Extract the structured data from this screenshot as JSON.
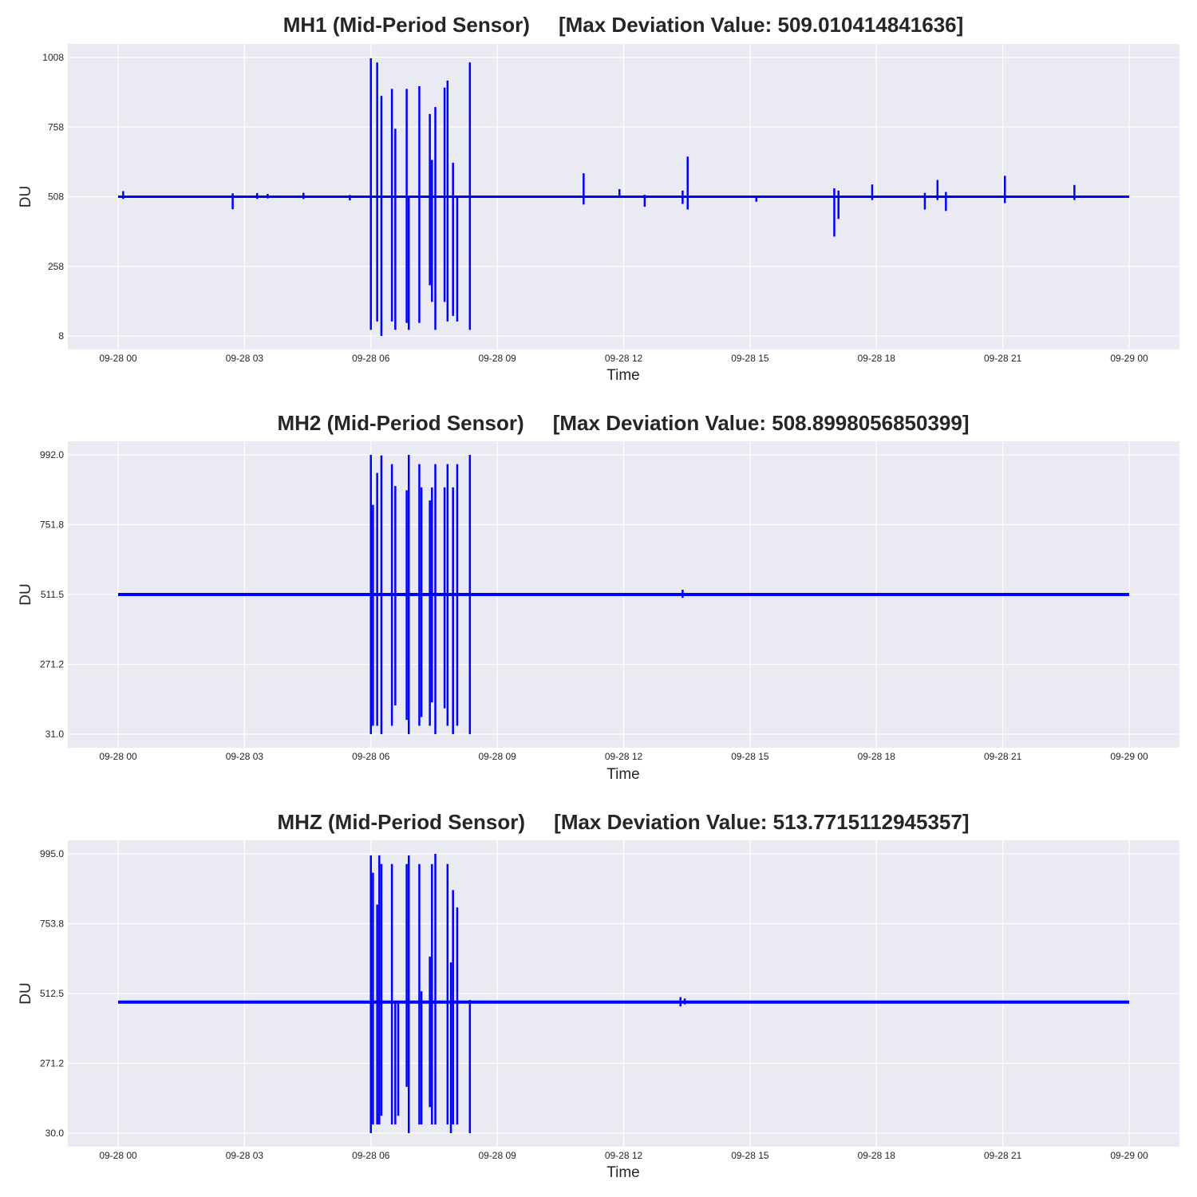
{
  "chart_data": [
    {
      "type": "line",
      "title": "MH1 (Mid-Period Sensor)     [Max Deviation Value: 509.010414841636]",
      "xlabel": "Time",
      "ylabel": "DU",
      "x_ticks": [
        "09-28 00",
        "09-28 03",
        "09-28 06",
        "09-28 09",
        "09-28 12",
        "09-28 15",
        "09-28 18",
        "09-28 21",
        "09-29 00"
      ],
      "y_ticks": [
        "8",
        "258",
        "508",
        "758",
        "1008"
      ],
      "ylim": [
        8,
        1008
      ],
      "xlim_hours": [
        0,
        24
      ],
      "grid": true,
      "color": "#0000ff",
      "baseline": 508,
      "series": [
        {
          "spikes": [
            {
              "t": 0.12,
              "lo": 500,
              "hi": 528
            },
            {
              "t": 2.72,
              "lo": 463,
              "hi": 520
            },
            {
              "t": 3.3,
              "lo": 500,
              "hi": 521
            },
            {
              "t": 3.55,
              "lo": 502,
              "hi": 518
            },
            {
              "t": 4.4,
              "lo": 500,
              "hi": 522
            },
            {
              "t": 5.5,
              "lo": 495,
              "hi": 514
            },
            {
              "t": 6.0,
              "lo": 30,
              "hi": 1005
            },
            {
              "t": 6.15,
              "lo": 60,
              "hi": 990
            },
            {
              "t": 6.25,
              "lo": 8,
              "hi": 870
            },
            {
              "t": 6.5,
              "lo": 60,
              "hi": 895
            },
            {
              "t": 6.58,
              "lo": 30,
              "hi": 752
            },
            {
              "t": 6.85,
              "lo": 55,
              "hi": 895
            },
            {
              "t": 6.9,
              "lo": 30,
              "hi": 510
            },
            {
              "t": 7.15,
              "lo": 55,
              "hi": 905
            },
            {
              "t": 7.4,
              "lo": 190,
              "hi": 805
            },
            {
              "t": 7.45,
              "lo": 130,
              "hi": 640
            },
            {
              "t": 7.53,
              "lo": 30,
              "hi": 830
            },
            {
              "t": 7.75,
              "lo": 130,
              "hi": 900
            },
            {
              "t": 7.82,
              "lo": 60,
              "hi": 925
            },
            {
              "t": 7.95,
              "lo": 80,
              "hi": 630
            },
            {
              "t": 8.05,
              "lo": 60,
              "hi": 510
            },
            {
              "t": 8.35,
              "lo": 30,
              "hi": 990
            },
            {
              "t": 11.05,
              "lo": 480,
              "hi": 592
            },
            {
              "t": 11.9,
              "lo": 505,
              "hi": 535
            },
            {
              "t": 12.5,
              "lo": 472,
              "hi": 515
            },
            {
              "t": 13.4,
              "lo": 482,
              "hi": 530
            },
            {
              "t": 13.52,
              "lo": 462,
              "hi": 652
            },
            {
              "t": 15.15,
              "lo": 490,
              "hi": 512
            },
            {
              "t": 17.0,
              "lo": 365,
              "hi": 538
            },
            {
              "t": 17.1,
              "lo": 428,
              "hi": 530
            },
            {
              "t": 17.9,
              "lo": 496,
              "hi": 552
            },
            {
              "t": 19.15,
              "lo": 462,
              "hi": 522
            },
            {
              "t": 19.45,
              "lo": 496,
              "hi": 568
            },
            {
              "t": 19.65,
              "lo": 457,
              "hi": 525
            },
            {
              "t": 21.05,
              "lo": 485,
              "hi": 583
            },
            {
              "t": 22.7,
              "lo": 496,
              "hi": 550
            }
          ]
        }
      ]
    },
    {
      "type": "line",
      "title": "MH2 (Mid-Period Sensor)     [Max Deviation Value: 508.8998056850399]",
      "xlabel": "Time",
      "ylabel": "DU",
      "x_ticks": [
        "09-28 00",
        "09-28 03",
        "09-28 06",
        "09-28 09",
        "09-28 12",
        "09-28 15",
        "09-28 18",
        "09-28 21",
        "09-29 00"
      ],
      "y_ticks": [
        "31.0",
        "271.2",
        "511.5",
        "751.8",
        "992.0"
      ],
      "ylim": [
        31.0,
        992.0
      ],
      "xlim_hours": [
        0,
        24
      ],
      "grid": true,
      "color": "#0000ff",
      "baseline": 511.5,
      "series": [
        {
          "spikes": [
            {
              "t": 6.0,
              "lo": 31,
              "hi": 992
            },
            {
              "t": 6.05,
              "lo": 60,
              "hi": 820
            },
            {
              "t": 6.15,
              "lo": 60,
              "hi": 930
            },
            {
              "t": 6.25,
              "lo": 31,
              "hi": 990
            },
            {
              "t": 6.5,
              "lo": 60,
              "hi": 960
            },
            {
              "t": 6.58,
              "lo": 130,
              "hi": 885
            },
            {
              "t": 6.85,
              "lo": 80,
              "hi": 870
            },
            {
              "t": 6.9,
              "lo": 31,
              "hi": 992
            },
            {
              "t": 7.15,
              "lo": 60,
              "hi": 960
            },
            {
              "t": 7.2,
              "lo": 90,
              "hi": 880
            },
            {
              "t": 7.4,
              "lo": 60,
              "hi": 835
            },
            {
              "t": 7.45,
              "lo": 140,
              "hi": 880
            },
            {
              "t": 7.53,
              "lo": 31,
              "hi": 960
            },
            {
              "t": 7.75,
              "lo": 120,
              "hi": 880
            },
            {
              "t": 7.82,
              "lo": 60,
              "hi": 960
            },
            {
              "t": 7.95,
              "lo": 31,
              "hi": 880
            },
            {
              "t": 8.05,
              "lo": 60,
              "hi": 960
            },
            {
              "t": 8.35,
              "lo": 31,
              "hi": 992
            },
            {
              "t": 13.4,
              "lo": 500,
              "hi": 528
            }
          ]
        }
      ]
    },
    {
      "type": "line",
      "title": "MHZ (Mid-Period Sensor)     [Max Deviation Value: 513.7715112945357]",
      "xlabel": "Time",
      "ylabel": "DU",
      "x_ticks": [
        "09-28 00",
        "09-28 03",
        "09-28 06",
        "09-28 09",
        "09-28 12",
        "09-28 15",
        "09-28 18",
        "09-28 21",
        "09-29 00"
      ],
      "y_ticks": [
        "30.0",
        "271.2",
        "512.5",
        "753.8",
        "995.0"
      ],
      "ylim": [
        30.0,
        995.0
      ],
      "xlim_hours": [
        0,
        24
      ],
      "grid": true,
      "color": "#0000ff",
      "baseline": 483,
      "series": [
        {
          "spikes": [
            {
              "t": 6.0,
              "lo": 30,
              "hi": 990
            },
            {
              "t": 6.05,
              "lo": 60,
              "hi": 930
            },
            {
              "t": 6.15,
              "lo": 60,
              "hi": 820
            },
            {
              "t": 6.2,
              "lo": 60,
              "hi": 990
            },
            {
              "t": 6.25,
              "lo": 90,
              "hi": 960
            },
            {
              "t": 6.5,
              "lo": 60,
              "hi": 960
            },
            {
              "t": 6.58,
              "lo": 60,
              "hi": 480
            },
            {
              "t": 6.65,
              "lo": 90,
              "hi": 480
            },
            {
              "t": 6.85,
              "lo": 190,
              "hi": 960
            },
            {
              "t": 6.9,
              "lo": 30,
              "hi": 990
            },
            {
              "t": 7.15,
              "lo": 60,
              "hi": 960
            },
            {
              "t": 7.2,
              "lo": 60,
              "hi": 520
            },
            {
              "t": 7.4,
              "lo": 120,
              "hi": 640
            },
            {
              "t": 7.45,
              "lo": 60,
              "hi": 960
            },
            {
              "t": 7.53,
              "lo": 60,
              "hi": 995
            },
            {
              "t": 7.82,
              "lo": 60,
              "hi": 960
            },
            {
              "t": 7.9,
              "lo": 30,
              "hi": 620
            },
            {
              "t": 7.95,
              "lo": 60,
              "hi": 870
            },
            {
              "t": 8.05,
              "lo": 60,
              "hi": 810
            },
            {
              "t": 8.35,
              "lo": 30,
              "hi": 490
            },
            {
              "t": 13.35,
              "lo": 468,
              "hi": 500
            },
            {
              "t": 13.45,
              "lo": 475,
              "hi": 495
            }
          ]
        }
      ]
    }
  ]
}
